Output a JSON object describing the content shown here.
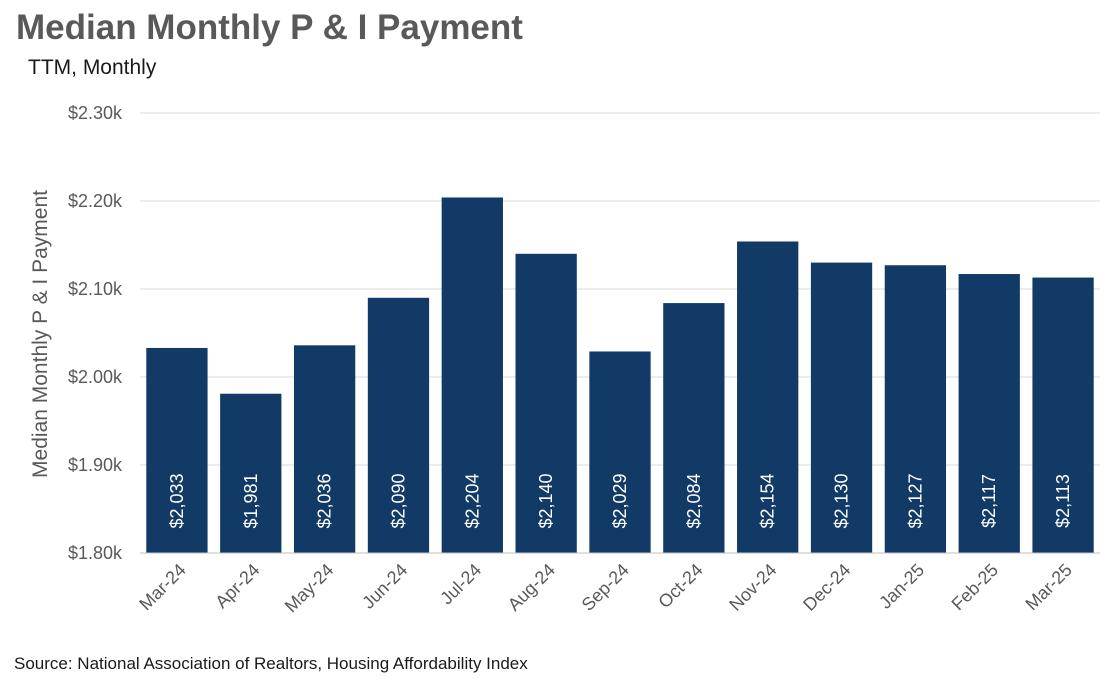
{
  "title": "Median Monthly P & I Payment",
  "subtitle": "TTM, Monthly",
  "source": "Source: National Association of Realtors, Housing Affordability Index",
  "chart_data": {
    "type": "bar",
    "title": "Median Monthly P & I Payment",
    "subtitle": "TTM, Monthly",
    "xlabel": "",
    "ylabel": "Median Monthly P & I Payment",
    "ylim": [
      1800,
      2300
    ],
    "yticks": [
      1800,
      1900,
      2000,
      2100,
      2200,
      2300
    ],
    "ytick_labels": [
      "$1.80k",
      "$1.90k",
      "$2.00k",
      "$2.10k",
      "$2.20k",
      "$2.30k"
    ],
    "categories": [
      "Mar-24",
      "Apr-24",
      "May-24",
      "Jun-24",
      "Jul-24",
      "Aug-24",
      "Sep-24",
      "Oct-24",
      "Nov-24",
      "Dec-24",
      "Jan-25",
      "Feb-25",
      "Mar-25"
    ],
    "values": [
      2033,
      1981,
      2036,
      2090,
      2204,
      2140,
      2029,
      2084,
      2154,
      2130,
      2127,
      2117,
      2113
    ],
    "data_labels": [
      "$2,033",
      "$1,981",
      "$2,036",
      "$2,090",
      "$2,204",
      "$2,140",
      "$2,029",
      "$2,084",
      "$2,154",
      "$2,130",
      "$2,127",
      "$2,117",
      "$2,113"
    ],
    "bar_color": "#113a66",
    "grid": true,
    "legend": "none"
  }
}
